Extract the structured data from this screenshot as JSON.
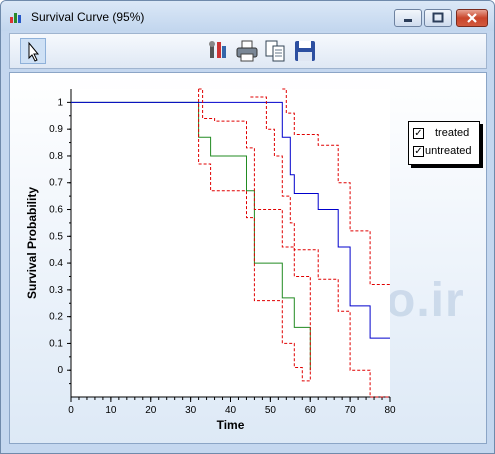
{
  "window": {
    "title": "Survival Curve (95%)"
  },
  "toolbar": {
    "buttons": [
      "pointer-tool",
      "settings-tool",
      "print-tool",
      "copy-tool",
      "save-tool"
    ]
  },
  "legend": {
    "items": [
      {
        "label": "treated",
        "checked": true
      },
      {
        "label": "untreated",
        "checked": true
      }
    ]
  },
  "watermark": "pishgam-bio.ir",
  "colors": {
    "treated": "#228B22",
    "untreated": "#0000CC",
    "ci": "#E00000"
  },
  "chart_data": {
    "type": "line",
    "xlabel": "Time",
    "ylabel": "Survival Probability",
    "xlim": [
      0,
      80
    ],
    "ylim": [
      -0.1,
      1.05
    ],
    "xticks": [
      "0",
      "10",
      "20",
      "30",
      "40",
      "50",
      "60",
      "70",
      "80"
    ],
    "yticks": [
      "0",
      "0.1",
      "0.2",
      "0.3",
      "0.4",
      "0.5",
      "0.6",
      "0.7",
      "0.8",
      "0.9",
      "1"
    ],
    "step_series": [
      {
        "name": "treated",
        "color": "treated",
        "style": "solid",
        "points": [
          [
            0,
            1
          ],
          [
            32,
            1
          ],
          [
            32,
            0.87
          ],
          [
            35,
            0.87
          ],
          [
            35,
            0.8
          ],
          [
            44,
            0.8
          ],
          [
            44,
            0.67
          ],
          [
            46,
            0.67
          ],
          [
            46,
            0.4
          ],
          [
            53,
            0.4
          ],
          [
            53,
            0.27
          ],
          [
            56,
            0.27
          ],
          [
            56,
            0.16
          ],
          [
            60,
            0.16
          ],
          [
            60,
            0
          ]
        ]
      },
      {
        "name": "untreated",
        "color": "untreated",
        "style": "solid",
        "points": [
          [
            0,
            1
          ],
          [
            53,
            1
          ],
          [
            53,
            0.87
          ],
          [
            55,
            0.87
          ],
          [
            55,
            0.73
          ],
          [
            56,
            0.73
          ],
          [
            56,
            0.66
          ],
          [
            62,
            0.66
          ],
          [
            62,
            0.6
          ],
          [
            67,
            0.6
          ],
          [
            67,
            0.46
          ],
          [
            70,
            0.46
          ],
          [
            70,
            0.24
          ],
          [
            75,
            0.24
          ],
          [
            75,
            0.12
          ],
          [
            80,
            0.12
          ]
        ]
      },
      {
        "name": "",
        "color": "ci",
        "style": "dashed",
        "points": [
          [
            32,
            1.05
          ],
          [
            32,
            0.77
          ],
          [
            35,
            0.77
          ],
          [
            35,
            0.67
          ],
          [
            44,
            0.67
          ],
          [
            44,
            0.57
          ],
          [
            46,
            0.57
          ],
          [
            46,
            0.26
          ],
          [
            53,
            0.26
          ],
          [
            53,
            0.1
          ],
          [
            56,
            0.1
          ],
          [
            56,
            0.01
          ],
          [
            58,
            0.01
          ],
          [
            58,
            -0.04
          ],
          [
            60,
            -0.04
          ],
          [
            60,
            0
          ]
        ]
      },
      {
        "name": "",
        "color": "ci",
        "style": "dashed",
        "points": [
          [
            32,
            1.05
          ],
          [
            33,
            1.05
          ],
          [
            33,
            0.94
          ],
          [
            36,
            0.94
          ],
          [
            36,
            0.93
          ],
          [
            44,
            0.93
          ],
          [
            44,
            0.83
          ],
          [
            46,
            0.83
          ],
          [
            46,
            0.6
          ],
          [
            53,
            0.6
          ],
          [
            53,
            0.46
          ],
          [
            56,
            0.46
          ],
          [
            56,
            0.35
          ],
          [
            60,
            0.35
          ],
          [
            60,
            0
          ]
        ]
      },
      {
        "name": "",
        "color": "ci",
        "style": "dashed",
        "points": [
          [
            45,
            1.02
          ],
          [
            49,
            1.02
          ],
          [
            49,
            0.9
          ],
          [
            51,
            0.9
          ],
          [
            51,
            0.8
          ],
          [
            53,
            0.8
          ],
          [
            53,
            0.65
          ],
          [
            55,
            0.65
          ],
          [
            55,
            0.55
          ],
          [
            56,
            0.55
          ],
          [
            56,
            0.45
          ],
          [
            62,
            0.45
          ],
          [
            62,
            0.34
          ],
          [
            67,
            0.34
          ],
          [
            67,
            0.22
          ],
          [
            70,
            0.22
          ],
          [
            70,
            0
          ],
          [
            75,
            0
          ],
          [
            75,
            -0.1
          ],
          [
            80,
            -0.1
          ]
        ]
      },
      {
        "name": "",
        "color": "ci",
        "style": "dashed",
        "points": [
          [
            53,
            1.05
          ],
          [
            54,
            1.05
          ],
          [
            54,
            0.96
          ],
          [
            56,
            0.96
          ],
          [
            56,
            0.88
          ],
          [
            62,
            0.88
          ],
          [
            62,
            0.84
          ],
          [
            67,
            0.84
          ],
          [
            67,
            0.7
          ],
          [
            70,
            0.7
          ],
          [
            70,
            0.52
          ],
          [
            75,
            0.52
          ],
          [
            75,
            0.32
          ],
          [
            80,
            0.32
          ]
        ]
      }
    ]
  }
}
